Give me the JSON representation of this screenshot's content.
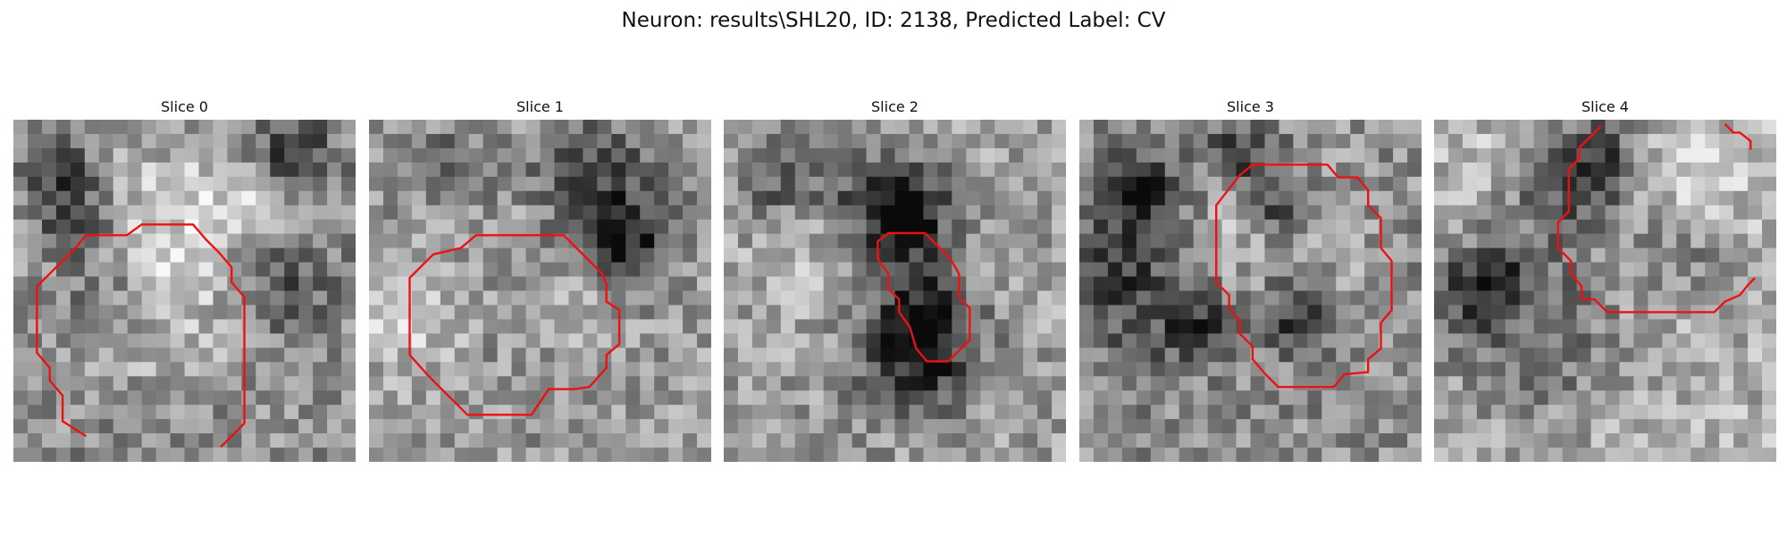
{
  "figure": {
    "title": "Neuron: results\\SHL20, ID: 2138, Predicted Label: CV"
  },
  "contour_color": "#ee1111",
  "panels": [
    {
      "title": "Slice 0",
      "contour_closed": false,
      "contour": [
        [
          3.4,
          14.8
        ],
        [
          2.3,
          14.1
        ],
        [
          2.3,
          12.9
        ],
        [
          1.7,
          12.2
        ],
        [
          1.7,
          11.6
        ],
        [
          1.1,
          10.9
        ],
        [
          1.1,
          7.8
        ],
        [
          1.7,
          7.2
        ],
        [
          2.3,
          6.6
        ],
        [
          2.9,
          6.0
        ],
        [
          3.4,
          5.4
        ],
        [
          5.3,
          5.4
        ],
        [
          6.0,
          4.9
        ],
        [
          8.4,
          4.9
        ],
        [
          9.0,
          5.6
        ],
        [
          9.6,
          6.2
        ],
        [
          10.2,
          6.9
        ],
        [
          10.2,
          7.6
        ],
        [
          10.8,
          8.3
        ],
        [
          10.8,
          14.2
        ],
        [
          10.2,
          14.8
        ],
        [
          9.7,
          15.3
        ]
      ]
    },
    {
      "title": "Slice 1",
      "contour_closed": true,
      "contour": [
        [
          1.9,
          9.4
        ],
        [
          1.9,
          7.4
        ],
        [
          3.0,
          6.3
        ],
        [
          4.3,
          6.0
        ],
        [
          5.0,
          5.4
        ],
        [
          8.0,
          5.4
        ],
        [
          9.1,
          5.4
        ],
        [
          9.7,
          6.0
        ],
        [
          10.3,
          6.6
        ],
        [
          10.9,
          7.2
        ],
        [
          11.1,
          7.7
        ],
        [
          11.1,
          8.5
        ],
        [
          11.7,
          8.9
        ],
        [
          11.7,
          10.5
        ],
        [
          11.1,
          11.0
        ],
        [
          11.1,
          11.6
        ],
        [
          10.3,
          12.5
        ],
        [
          9.6,
          12.6
        ],
        [
          8.4,
          12.6
        ],
        [
          7.6,
          13.8
        ],
        [
          4.6,
          13.8
        ],
        [
          4.0,
          13.2
        ],
        [
          3.4,
          12.6
        ],
        [
          2.8,
          12.0
        ],
        [
          1.9,
          11.0
        ]
      ]
    },
    {
      "title": "Slice 2",
      "contour_closed": true,
      "contour": [
        [
          7.7,
          5.3
        ],
        [
          9.4,
          5.3
        ],
        [
          10.0,
          5.9
        ],
        [
          10.6,
          6.5
        ],
        [
          11.0,
          7.2
        ],
        [
          11.0,
          8.3
        ],
        [
          11.5,
          8.8
        ],
        [
          11.5,
          10.3
        ],
        [
          11.0,
          10.8
        ],
        [
          10.5,
          11.3
        ],
        [
          9.5,
          11.3
        ],
        [
          9.0,
          10.7
        ],
        [
          8.7,
          9.7
        ],
        [
          8.2,
          9.0
        ],
        [
          8.2,
          8.4
        ],
        [
          7.7,
          7.9
        ],
        [
          7.7,
          7.2
        ],
        [
          7.2,
          6.5
        ],
        [
          7.2,
          5.7
        ]
      ]
    },
    {
      "title": "Slice 3",
      "contour_closed": true,
      "contour": [
        [
          7.1,
          3.1
        ],
        [
          7.5,
          2.6
        ],
        [
          8.1,
          2.1
        ],
        [
          11.6,
          2.1
        ],
        [
          12.1,
          2.7
        ],
        [
          13.0,
          2.7
        ],
        [
          13.5,
          3.3
        ],
        [
          13.5,
          4.0
        ],
        [
          14.1,
          4.6
        ],
        [
          14.1,
          6.0
        ],
        [
          14.6,
          6.6
        ],
        [
          14.6,
          8.9
        ],
        [
          14.1,
          9.5
        ],
        [
          14.1,
          10.7
        ],
        [
          13.5,
          11.2
        ],
        [
          13.5,
          11.8
        ],
        [
          12.4,
          11.9
        ],
        [
          11.9,
          12.5
        ],
        [
          9.3,
          12.5
        ],
        [
          8.7,
          11.9
        ],
        [
          8.1,
          11.2
        ],
        [
          8.1,
          10.6
        ],
        [
          7.5,
          10.0
        ],
        [
          7.5,
          9.4
        ],
        [
          7.0,
          8.8
        ],
        [
          7.0,
          8.2
        ],
        [
          6.4,
          7.6
        ],
        [
          6.4,
          6.9
        ],
        [
          6.4,
          4.0
        ]
      ]
    },
    {
      "title": "Slice 4",
      "contour_closed": false,
      "contour": [
        [
          7.8,
          0.3
        ],
        [
          6.8,
          1.3
        ],
        [
          6.8,
          1.8
        ],
        [
          6.3,
          2.3
        ],
        [
          6.3,
          3.3
        ],
        [
          6.3,
          4.3
        ],
        [
          5.8,
          4.8
        ],
        [
          5.8,
          5.4
        ],
        [
          5.8,
          6.0
        ],
        [
          6.4,
          6.6
        ],
        [
          6.4,
          7.2
        ],
        [
          6.9,
          7.8
        ],
        [
          6.9,
          8.4
        ],
        [
          7.5,
          8.4
        ],
        [
          8.1,
          9.0
        ],
        [
          9.0,
          9.0
        ],
        [
          13.1,
          9.0
        ],
        [
          13.6,
          8.5
        ],
        [
          14.3,
          8.2
        ],
        [
          14.7,
          7.7
        ],
        [
          15.0,
          7.4
        ]
      ],
      "contour_extra": [
        [
          13.6,
          0.2
        ],
        [
          14.0,
          0.6
        ],
        [
          14.3,
          0.6
        ],
        [
          14.8,
          1.0
        ],
        [
          14.8,
          1.4
        ]
      ]
    }
  ]
}
